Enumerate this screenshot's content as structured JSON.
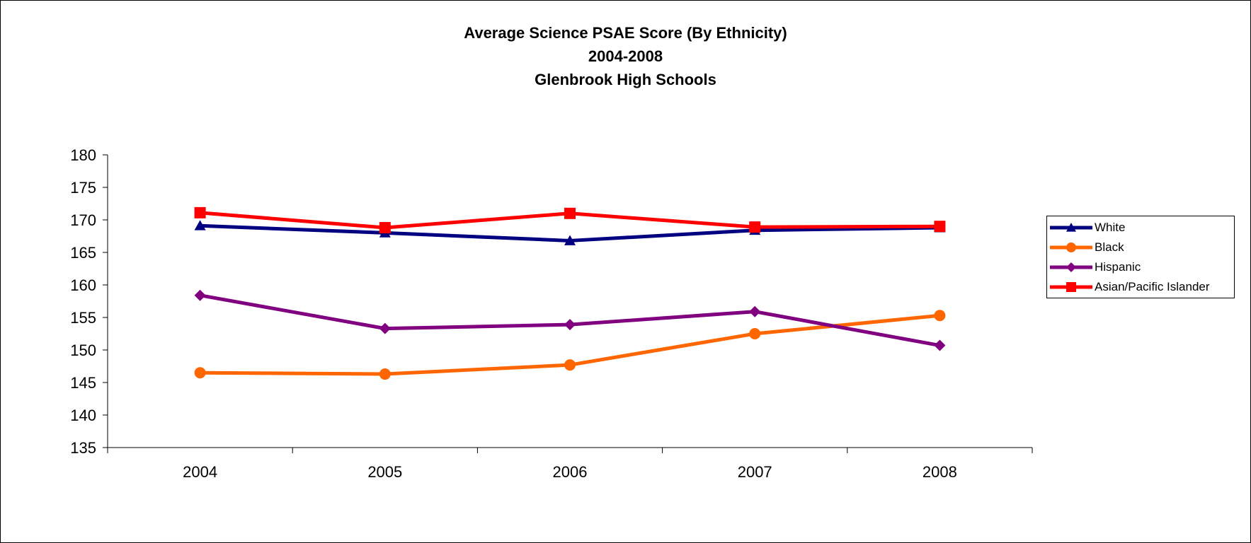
{
  "chart_data": {
    "type": "line",
    "title": [
      "Average Science PSAE Score (By Ethnicity)",
      "2004-2008",
      "Glenbrook High Schools"
    ],
    "xlabel": "",
    "ylabel": "",
    "categories": [
      "2004",
      "2005",
      "2006",
      "2007",
      "2008"
    ],
    "ylim": [
      135,
      180
    ],
    "yticks": [
      135,
      140,
      145,
      150,
      155,
      160,
      165,
      170,
      175,
      180
    ],
    "grid": false,
    "legend_position": "right",
    "series": [
      {
        "name": "White",
        "values": [
          169.1,
          168.0,
          166.8,
          168.4,
          168.8
        ],
        "color": "#000080",
        "marker": "triangle"
      },
      {
        "name": "Black",
        "values": [
          146.5,
          146.3,
          147.7,
          152.5,
          155.3
        ],
        "color": "#FF6600",
        "marker": "circle"
      },
      {
        "name": "Hispanic",
        "values": [
          158.4,
          153.3,
          153.9,
          155.9,
          150.7
        ],
        "color": "#800080",
        "marker": "diamond"
      },
      {
        "name": "Asian/Pacific Islander",
        "values": [
          171.1,
          168.8,
          171.0,
          168.9,
          169.0
        ],
        "color": "#FF0000",
        "marker": "square"
      }
    ]
  }
}
